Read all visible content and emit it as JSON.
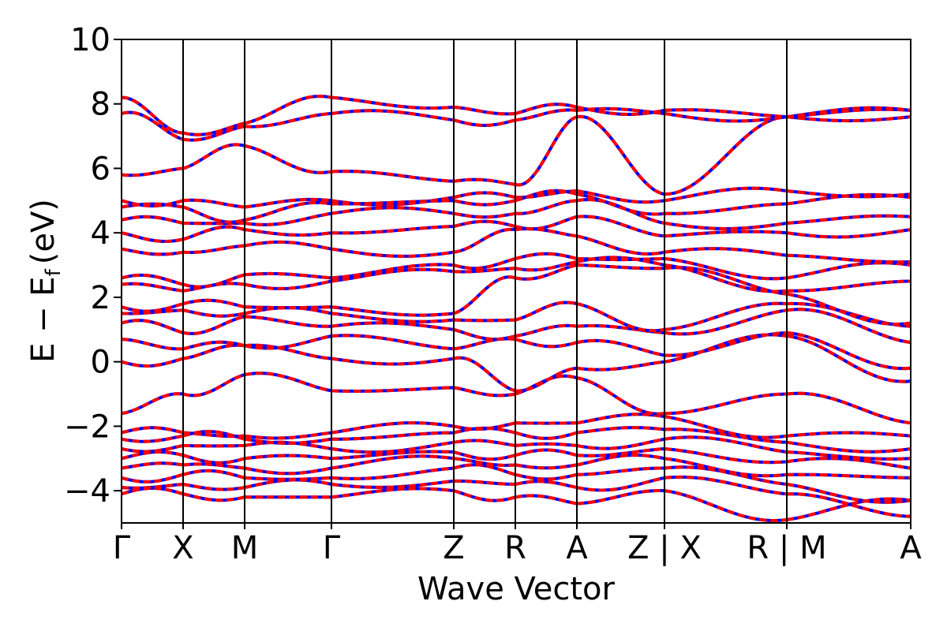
{
  "chart_data": {
    "type": "line",
    "title": "",
    "xlabel": "Wave Vector",
    "ylabel_main": "E − E",
    "ylabel_sub": "f",
    "ylabel_unit": "(eV)",
    "ylim": [
      -5,
      10
    ],
    "yticks": [
      {
        "value": -4,
        "label": "−4"
      },
      {
        "value": -2,
        "label": "−2"
      },
      {
        "value": 0,
        "label": "0"
      },
      {
        "value": 2,
        "label": "2"
      },
      {
        "value": 4,
        "label": "4"
      },
      {
        "value": 6,
        "label": "6"
      },
      {
        "value": 8,
        "label": "8"
      },
      {
        "value": 10,
        "label": "10"
      }
    ],
    "xlim": [
      0,
      1
    ],
    "kpath": [
      {
        "label": "Γ",
        "x": 0.0
      },
      {
        "label": "X",
        "x": 0.078
      },
      {
        "label": "M",
        "x": 0.156
      },
      {
        "label": "Γ",
        "x": 0.266
      },
      {
        "label": "Z",
        "x": 0.421
      },
      {
        "label": "R",
        "x": 0.499
      },
      {
        "label": "A",
        "x": 0.577
      },
      {
        "label": "Z | X",
        "x": 0.688
      },
      {
        "label": "R | M",
        "x": 0.843
      },
      {
        "label": "A",
        "x": 1.0
      }
    ],
    "segments": [
      {
        "from": "Γ",
        "to": "X",
        "start": 0.0,
        "end": 0.078
      },
      {
        "from": "X",
        "to": "M",
        "start": 0.078,
        "end": 0.156
      },
      {
        "from": "M",
        "to": "Γ",
        "start": 0.156,
        "end": 0.266
      },
      {
        "from": "Γ",
        "to": "Z",
        "start": 0.266,
        "end": 0.421
      },
      {
        "from": "Z",
        "to": "R",
        "start": 0.421,
        "end": 0.499
      },
      {
        "from": "R",
        "to": "A",
        "start": 0.499,
        "end": 0.577
      },
      {
        "from": "A",
        "to": "Z",
        "start": 0.577,
        "end": 0.688
      },
      {
        "from": "X",
        "to": "R",
        "start": 0.688,
        "end": 0.843
      },
      {
        "from": "M",
        "to": "A",
        "start": 0.843,
        "end": 1.0
      }
    ],
    "series": [
      {
        "style": "solid",
        "color": "#0000ff"
      },
      {
        "style": "dashed",
        "color": "#ff0000"
      }
    ],
    "band_energies_at_kpoints": [
      [
        -4.1,
        -4.1,
        -4.2,
        -4.2,
        -4.0,
        -4.2,
        -4.4,
        -4.0,
        -4.9,
        -4.3
      ],
      [
        -3.9,
        -3.8,
        -3.9,
        -3.8,
        -3.7,
        -3.8,
        -3.9,
        -3.6,
        -4.1,
        -4.8
      ],
      [
        -3.6,
        -3.5,
        -3.6,
        -3.6,
        -3.3,
        -3.5,
        -3.5,
        -3.3,
        -3.8,
        -4.3
      ],
      [
        -3.3,
        -3.2,
        -3.3,
        -3.3,
        -3.0,
        -3.2,
        -3.2,
        -3.0,
        -3.5,
        -3.6
      ],
      [
        -3.0,
        -2.9,
        -3.0,
        -3.0,
        -2.8,
        -2.9,
        -2.9,
        -2.7,
        -3.1,
        -3.3
      ],
      [
        -2.7,
        -2.6,
        -2.6,
        -2.7,
        -2.5,
        -2.6,
        -2.6,
        -2.4,
        -2.8,
        -3.0
      ],
      [
        -2.4,
        -2.3,
        -2.4,
        -2.4,
        -2.2,
        -2.2,
        -2.2,
        -2.1,
        -2.5,
        -2.7
      ],
      [
        -2.2,
        -2.2,
        -2.3,
        -2.2,
        -2.0,
        -1.9,
        -1.9,
        -1.7,
        -2.3,
        -2.3
      ],
      [
        -1.6,
        -1.0,
        -0.4,
        -0.9,
        -0.8,
        -1.0,
        -0.5,
        -1.6,
        -1.0,
        -1.9
      ],
      [
        0.0,
        0.1,
        0.5,
        0.1,
        0.1,
        -0.9,
        -0.2,
        0.0,
        0.8,
        -0.6
      ],
      [
        0.7,
        0.4,
        0.5,
        0.8,
        0.4,
        0.7,
        0.6,
        0.2,
        0.9,
        -0.2
      ],
      [
        1.2,
        0.9,
        1.4,
        1.1,
        1.0,
        0.8,
        1.1,
        0.9,
        1.6,
        0.6
      ],
      [
        1.5,
        1.6,
        1.5,
        1.5,
        1.3,
        1.3,
        1.8,
        1.0,
        1.8,
        1.1
      ],
      [
        1.7,
        1.8,
        1.7,
        1.7,
        1.5,
        2.6,
        3.0,
        2.9,
        2.1,
        1.2
      ],
      [
        2.4,
        2.2,
        2.4,
        2.5,
        2.8,
        2.9,
        3.1,
        3.0,
        2.2,
        2.5
      ],
      [
        2.6,
        2.4,
        2.7,
        2.6,
        3.0,
        3.2,
        3.2,
        3.2,
        2.6,
        3.0
      ],
      [
        3.5,
        3.4,
        3.6,
        3.5,
        3.4,
        4.1,
        3.9,
        3.4,
        3.3,
        3.1
      ],
      [
        4.0,
        3.8,
        4.1,
        4.0,
        4.2,
        4.2,
        4.5,
        3.9,
        4.0,
        4.1
      ],
      [
        4.4,
        4.3,
        4.3,
        4.6,
        4.6,
        4.6,
        5.0,
        4.3,
        4.3,
        4.5
      ],
      [
        4.8,
        4.8,
        4.4,
        4.9,
        5.0,
        5.0,
        5.2,
        4.6,
        4.9,
        5.1
      ],
      [
        5.0,
        5.0,
        4.8,
        5.0,
        5.1,
        5.1,
        5.3,
        5.0,
        5.3,
        5.2
      ],
      [
        5.8,
        6.0,
        6.7,
        5.9,
        5.6,
        5.5,
        7.6,
        5.2,
        7.6,
        7.6
      ],
      [
        7.7,
        6.9,
        7.3,
        7.7,
        7.5,
        7.5,
        7.8,
        7.7,
        7.6,
        7.8
      ],
      [
        8.2,
        7.1,
        7.4,
        8.2,
        7.9,
        7.7,
        7.9,
        7.8,
        7.6,
        7.8
      ]
    ]
  }
}
